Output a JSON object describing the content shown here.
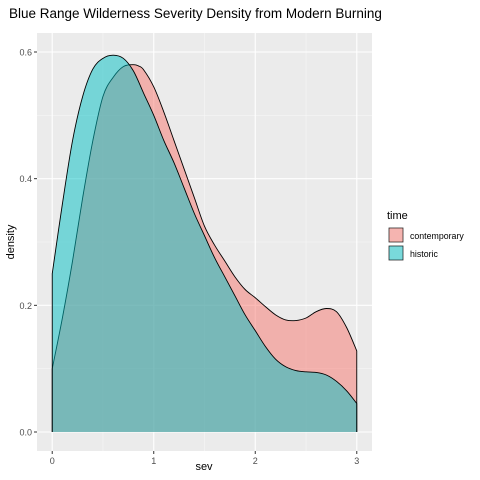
{
  "chart_data": {
    "type": "area",
    "title": "Blue Range Wilderness Severity Density from Modern Burning",
    "xlabel": "sev",
    "ylabel": "density",
    "xlim": [
      -0.15,
      3.15
    ],
    "ylim": [
      -0.03,
      0.63
    ],
    "x_ticks": [
      0,
      1,
      2,
      3
    ],
    "x_tick_labels": [
      "0",
      "1",
      "2",
      "3"
    ],
    "y_ticks": [
      0.0,
      0.2,
      0.4,
      0.6
    ],
    "y_tick_labels": [
      "0.0",
      "0.2",
      "0.4",
      "0.6"
    ],
    "grid": true,
    "legend": {
      "title": "time",
      "placement": "right",
      "entries": [
        "contemporary",
        "historic"
      ]
    },
    "series": [
      {
        "name": "contemporary",
        "color": "#F8766D",
        "x": [
          0,
          0.1,
          0.2,
          0.3,
          0.4,
          0.5,
          0.6,
          0.7,
          0.8,
          0.85,
          0.9,
          1.0,
          1.1,
          1.2,
          1.3,
          1.4,
          1.5,
          1.6,
          1.7,
          1.8,
          1.9,
          2.0,
          2.1,
          2.2,
          2.3,
          2.4,
          2.5,
          2.6,
          2.7,
          2.8,
          2.9,
          3.0
        ],
        "y": [
          0.1,
          0.18,
          0.27,
          0.37,
          0.46,
          0.53,
          0.56,
          0.577,
          0.58,
          0.578,
          0.572,
          0.545,
          0.505,
          0.46,
          0.415,
          0.37,
          0.325,
          0.295,
          0.27,
          0.245,
          0.225,
          0.212,
          0.198,
          0.185,
          0.177,
          0.176,
          0.18,
          0.19,
          0.195,
          0.19,
          0.165,
          0.128
        ]
      },
      {
        "name": "historic",
        "color": "#00BFC4",
        "x": [
          0,
          0.1,
          0.2,
          0.3,
          0.4,
          0.5,
          0.6,
          0.7,
          0.8,
          0.9,
          1.0,
          1.1,
          1.2,
          1.3,
          1.4,
          1.5,
          1.6,
          1.7,
          1.8,
          1.9,
          2.0,
          2.1,
          2.2,
          2.3,
          2.4,
          2.5,
          2.6,
          2.7,
          2.8,
          2.9,
          3.0
        ],
        "y": [
          0.25,
          0.36,
          0.46,
          0.53,
          0.573,
          0.59,
          0.595,
          0.59,
          0.57,
          0.535,
          0.5,
          0.46,
          0.425,
          0.385,
          0.345,
          0.31,
          0.275,
          0.245,
          0.215,
          0.185,
          0.16,
          0.135,
          0.115,
          0.103,
          0.097,
          0.095,
          0.094,
          0.09,
          0.08,
          0.065,
          0.045
        ]
      }
    ]
  }
}
